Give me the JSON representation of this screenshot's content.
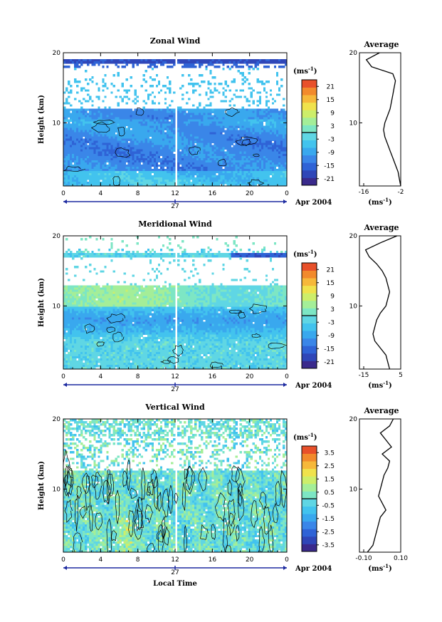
{
  "figure": {
    "xaxis_label": "Local Time",
    "date_label": "Apr 2004",
    "day_label": "27",
    "average_title": "Average",
    "unit_label": "(ms",
    "unit_exp": "-1",
    "unit_close": ")"
  },
  "colors": {
    "scale": [
      "#3a2a8c",
      "#2f46b8",
      "#2f63d6",
      "#3a86e8",
      "#39a8ee",
      "#42c3ee",
      "#5fd6e4",
      "#7de6c4",
      "#a4ee98",
      "#cdee6a",
      "#f0e24c",
      "#f6b83a",
      "#f28a2c",
      "#e8502a"
    ]
  },
  "chart_data": [
    {
      "type": "heatmap",
      "title": "Zonal Wind",
      "ylabel": "Height (km)",
      "xlim": [
        0,
        24
      ],
      "ylim": [
        1,
        20
      ],
      "xticks": [
        "0",
        "4",
        "8",
        "12",
        "16",
        "20",
        "0"
      ],
      "yticks": [
        "20",
        "10"
      ],
      "colorbar": {
        "unit": "ms-1",
        "ticks": [
          "21",
          "15",
          "9",
          "3",
          "-3",
          "-9",
          "-15",
          "-21"
        ],
        "range": [
          -24,
          24
        ]
      },
      "profile": {
        "title": "Average",
        "xticks": [
          "-16",
          "-2"
        ],
        "xlim": [
          -16,
          -2
        ],
        "yticks": [
          "20",
          "10"
        ],
        "heights": [
          1,
          2,
          3,
          4,
          5,
          6,
          7,
          8,
          9,
          10,
          11,
          12,
          13,
          14,
          15,
          16,
          17,
          18,
          19,
          20
        ],
        "values": [
          -2,
          -2.5,
          -3,
          -4,
          -5,
          -6,
          -7,
          -8,
          -8.5,
          -8,
          -7,
          -6,
          -5.5,
          -5,
          -4.5,
          -4,
          -5,
          -13,
          -15,
          -10
        ]
      }
    },
    {
      "type": "heatmap",
      "title": "Meridional Wind",
      "ylabel": "Height (km)",
      "xlim": [
        0,
        24
      ],
      "ylim": [
        1,
        20
      ],
      "xticks": [
        "0",
        "4",
        "8",
        "12",
        "16",
        "20",
        "0"
      ],
      "yticks": [
        "20",
        "10"
      ],
      "colorbar": {
        "unit": "ms-1",
        "ticks": [
          "21",
          "15",
          "9",
          "3",
          "-3",
          "-9",
          "-15",
          "-21"
        ],
        "range": [
          -24,
          24
        ]
      },
      "profile": {
        "title": "Average",
        "xticks": [
          "-15",
          "5"
        ],
        "xlim": [
          -15,
          5
        ],
        "yticks": [
          "20",
          "10"
        ],
        "heights": [
          1,
          2,
          3,
          4,
          5,
          6,
          7,
          8,
          9,
          10,
          11,
          12,
          13,
          14,
          15,
          16,
          17,
          18,
          19,
          20
        ],
        "values": [
          -1,
          -2,
          -3,
          -6,
          -9,
          -10,
          -9,
          -8,
          -6,
          -3,
          -2,
          -1,
          -2,
          -3,
          -5,
          -8,
          -12,
          -14,
          -6,
          3
        ]
      }
    },
    {
      "type": "heatmap",
      "title": "Vertical Wind",
      "ylabel": "Height (km)",
      "xlabel": "Local Time",
      "xlim": [
        0,
        24
      ],
      "ylim": [
        1,
        20
      ],
      "xticks": [
        "0",
        "4",
        "8",
        "12",
        "16",
        "20",
        "0"
      ],
      "yticks": [
        "20",
        "10"
      ],
      "colorbar": {
        "unit": "ms-1",
        "ticks": [
          "3.5",
          "2.5",
          "1.5",
          "0.5",
          "-0.5",
          "-1.5",
          "-2.5",
          "-3.5"
        ],
        "range": [
          -4,
          4
        ]
      },
      "profile": {
        "title": "Average",
        "xticks": [
          "-0.10",
          "0.10"
        ],
        "xlim": [
          -0.1,
          0.1
        ],
        "yticks": [
          "20",
          "10"
        ],
        "heights": [
          1,
          2,
          3,
          4,
          5,
          6,
          7,
          8,
          9,
          10,
          11,
          12,
          13,
          14,
          15,
          16,
          17,
          18,
          19,
          20
        ],
        "values": [
          -0.08,
          -0.05,
          -0.04,
          -0.03,
          -0.02,
          -0.01,
          0.02,
          0.0,
          -0.02,
          -0.01,
          0.0,
          0.01,
          0.03,
          0.04,
          0.0,
          0.05,
          0.02,
          -0.01,
          0.04,
          0.06
        ]
      }
    }
  ]
}
